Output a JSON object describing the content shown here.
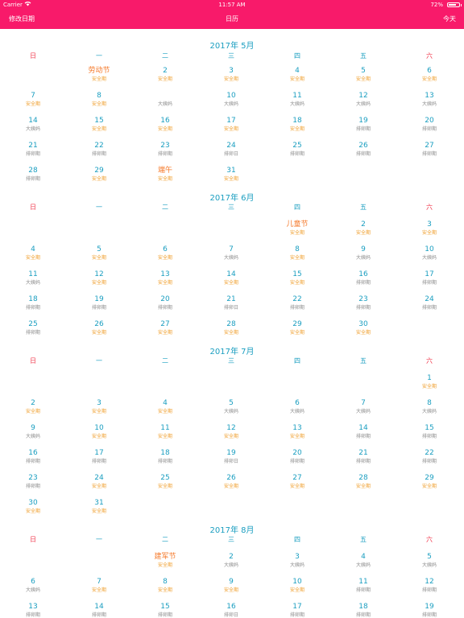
{
  "status_bar": {
    "carrier": "Carrier",
    "wifi_icon": "wifi-icon",
    "time": "11:57 AM",
    "battery_percent": "72%",
    "battery_level": 0.72
  },
  "nav": {
    "left": "修改日期",
    "title": "日历",
    "right": "今天"
  },
  "weekdays": [
    "日",
    "一",
    "二",
    "三",
    "四",
    "五",
    "六"
  ],
  "colors": {
    "header": "#f81a6a",
    "day_number": "#1a9ec0",
    "weekend_header": "#f03a4e",
    "festival": "#f5792a",
    "safe_period": "#f0a030",
    "other_label": "#8e8e8e"
  },
  "months": [
    {
      "title": "2017年 5月",
      "days": [
        {
          "n": "劳动节",
          "s": "安全期"
        },
        {
          "n": "2",
          "s": "安全期"
        },
        {
          "n": "3",
          "s": "安全期"
        },
        {
          "n": "4",
          "s": "安全期"
        },
        {
          "n": "5",
          "s": "安全期"
        },
        {
          "n": "6",
          "s": "安全期"
        },
        {
          "n": "7",
          "s": "安全期"
        },
        {
          "n": "8",
          "s": "安全期"
        },
        {
          "n": "",
          "s": "大姨妈"
        },
        {
          "n": "10",
          "s": "大姨妈"
        },
        {
          "n": "11",
          "s": "大姨妈"
        },
        {
          "n": "12",
          "s": "大姨妈"
        },
        {
          "n": "13",
          "s": "大姨妈"
        },
        {
          "n": "14",
          "s": "大姨妈"
        },
        {
          "n": "15",
          "s": "安全期"
        },
        {
          "n": "16",
          "s": "安全期"
        },
        {
          "n": "17",
          "s": "安全期"
        },
        {
          "n": "18",
          "s": "安全期"
        },
        {
          "n": "19",
          "s": "排卵期"
        },
        {
          "n": "20",
          "s": "排卵期"
        },
        {
          "n": "21",
          "s": "排卵期"
        },
        {
          "n": "22",
          "s": "排卵期"
        },
        {
          "n": "23",
          "s": "排卵期"
        },
        {
          "n": "24",
          "s": "排卵日"
        },
        {
          "n": "25",
          "s": "排卵期"
        },
        {
          "n": "26",
          "s": "排卵期"
        },
        {
          "n": "27",
          "s": "排卵期"
        },
        {
          "n": "28",
          "s": "排卵期"
        },
        {
          "n": "29",
          "s": "安全期"
        },
        {
          "n": "端午",
          "s": "安全期"
        },
        {
          "n": "31",
          "s": "安全期"
        }
      ]
    },
    {
      "title": "2017年 6月",
      "days": [
        {
          "n": "儿童节",
          "s": "安全期"
        },
        {
          "n": "2",
          "s": "安全期"
        },
        {
          "n": "3",
          "s": "安全期"
        },
        {
          "n": "4",
          "s": "安全期"
        },
        {
          "n": "5",
          "s": "安全期"
        },
        {
          "n": "6",
          "s": "安全期"
        },
        {
          "n": "7",
          "s": "大姨妈"
        },
        {
          "n": "8",
          "s": "安全期"
        },
        {
          "n": "9",
          "s": "大姨妈"
        },
        {
          "n": "10",
          "s": "大姨妈"
        },
        {
          "n": "11",
          "s": "大姨妈"
        },
        {
          "n": "12",
          "s": "安全期"
        },
        {
          "n": "13",
          "s": "安全期"
        },
        {
          "n": "14",
          "s": "安全期"
        },
        {
          "n": "15",
          "s": "安全期"
        },
        {
          "n": "16",
          "s": "排卵期"
        },
        {
          "n": "17",
          "s": "排卵期"
        },
        {
          "n": "18",
          "s": "排卵期"
        },
        {
          "n": "19",
          "s": "排卵期"
        },
        {
          "n": "20",
          "s": "排卵期"
        },
        {
          "n": "21",
          "s": "排卵日"
        },
        {
          "n": "22",
          "s": "排卵期"
        },
        {
          "n": "23",
          "s": "排卵期"
        },
        {
          "n": "24",
          "s": "排卵期"
        },
        {
          "n": "25",
          "s": "排卵期"
        },
        {
          "n": "26",
          "s": "安全期"
        },
        {
          "n": "27",
          "s": "安全期"
        },
        {
          "n": "28",
          "s": "安全期"
        },
        {
          "n": "29",
          "s": "安全期"
        },
        {
          "n": "30",
          "s": "安全期"
        }
      ]
    },
    {
      "title": "2017年 7月",
      "days": [
        {
          "n": "1",
          "s": "安全期"
        },
        {
          "n": "2",
          "s": "安全期"
        },
        {
          "n": "3",
          "s": "安全期"
        },
        {
          "n": "4",
          "s": "安全期"
        },
        {
          "n": "5",
          "s": "大姨妈"
        },
        {
          "n": "6",
          "s": "大姨妈"
        },
        {
          "n": "7",
          "s": "大姨妈"
        },
        {
          "n": "8",
          "s": "大姨妈"
        },
        {
          "n": "9",
          "s": "大姨妈"
        },
        {
          "n": "10",
          "s": "安全期"
        },
        {
          "n": "11",
          "s": "安全期"
        },
        {
          "n": "12",
          "s": "安全期"
        },
        {
          "n": "13",
          "s": "安全期"
        },
        {
          "n": "14",
          "s": "排卵期"
        },
        {
          "n": "15",
          "s": "排卵期"
        },
        {
          "n": "16",
          "s": "排卵期"
        },
        {
          "n": "17",
          "s": "排卵期"
        },
        {
          "n": "18",
          "s": "排卵期"
        },
        {
          "n": "19",
          "s": "排卵日"
        },
        {
          "n": "20",
          "s": "排卵期"
        },
        {
          "n": "21",
          "s": "排卵期"
        },
        {
          "n": "22",
          "s": "排卵期"
        },
        {
          "n": "23",
          "s": "排卵期"
        },
        {
          "n": "24",
          "s": "安全期"
        },
        {
          "n": "25",
          "s": "安全期"
        },
        {
          "n": "26",
          "s": "安全期"
        },
        {
          "n": "27",
          "s": "安全期"
        },
        {
          "n": "28",
          "s": "安全期"
        },
        {
          "n": "29",
          "s": "安全期"
        },
        {
          "n": "30",
          "s": "安全期"
        },
        {
          "n": "31",
          "s": "安全期"
        }
      ]
    },
    {
      "title": "2017年 8月",
      "days": [
        {
          "n": "建军节",
          "s": "安全期"
        },
        {
          "n": "2",
          "s": "大姨妈"
        },
        {
          "n": "3",
          "s": "大姨妈"
        },
        {
          "n": "4",
          "s": "大姨妈"
        },
        {
          "n": "5",
          "s": "大姨妈"
        },
        {
          "n": "6",
          "s": "大姨妈"
        },
        {
          "n": "7",
          "s": "安全期"
        },
        {
          "n": "8",
          "s": "安全期"
        },
        {
          "n": "9",
          "s": "安全期"
        },
        {
          "n": "10",
          "s": "安全期"
        },
        {
          "n": "11",
          "s": "排卵期"
        },
        {
          "n": "12",
          "s": "排卵期"
        },
        {
          "n": "13",
          "s": "排卵期"
        },
        {
          "n": "14",
          "s": "排卵期"
        },
        {
          "n": "15",
          "s": "排卵期"
        },
        {
          "n": "16",
          "s": "排卵日"
        },
        {
          "n": "17",
          "s": "排卵期"
        },
        {
          "n": "18",
          "s": "排卵期"
        },
        {
          "n": "19",
          "s": "排卵期"
        }
      ]
    }
  ]
}
